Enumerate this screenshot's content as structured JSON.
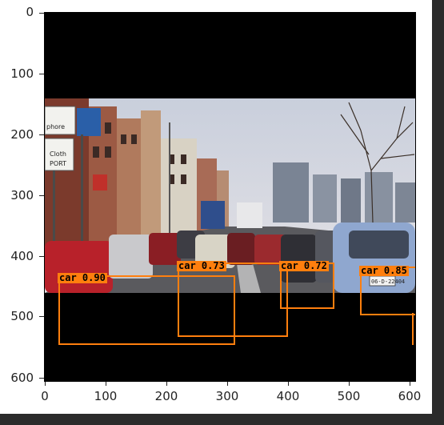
{
  "axes": {
    "x_ticks": [
      "0",
      "100",
      "200",
      "300",
      "400",
      "500",
      "600"
    ],
    "y_ticks": [
      "0",
      "100",
      "200",
      "300",
      "400",
      "500",
      "600"
    ]
  },
  "signs": {
    "left_sign_line1": "phore",
    "left_sign_line2": "Cloth",
    "left_sign_line3": "PORT"
  },
  "plate": "06-D-22404",
  "detections": [
    {
      "label": "car 0.90"
    },
    {
      "label": "car 0.73"
    },
    {
      "label": "car 0.72"
    },
    {
      "label": "car 0.85"
    }
  ],
  "colors": {
    "box": "#ff7f0e",
    "letterbox": "#000000",
    "background": "#ffffff"
  }
}
